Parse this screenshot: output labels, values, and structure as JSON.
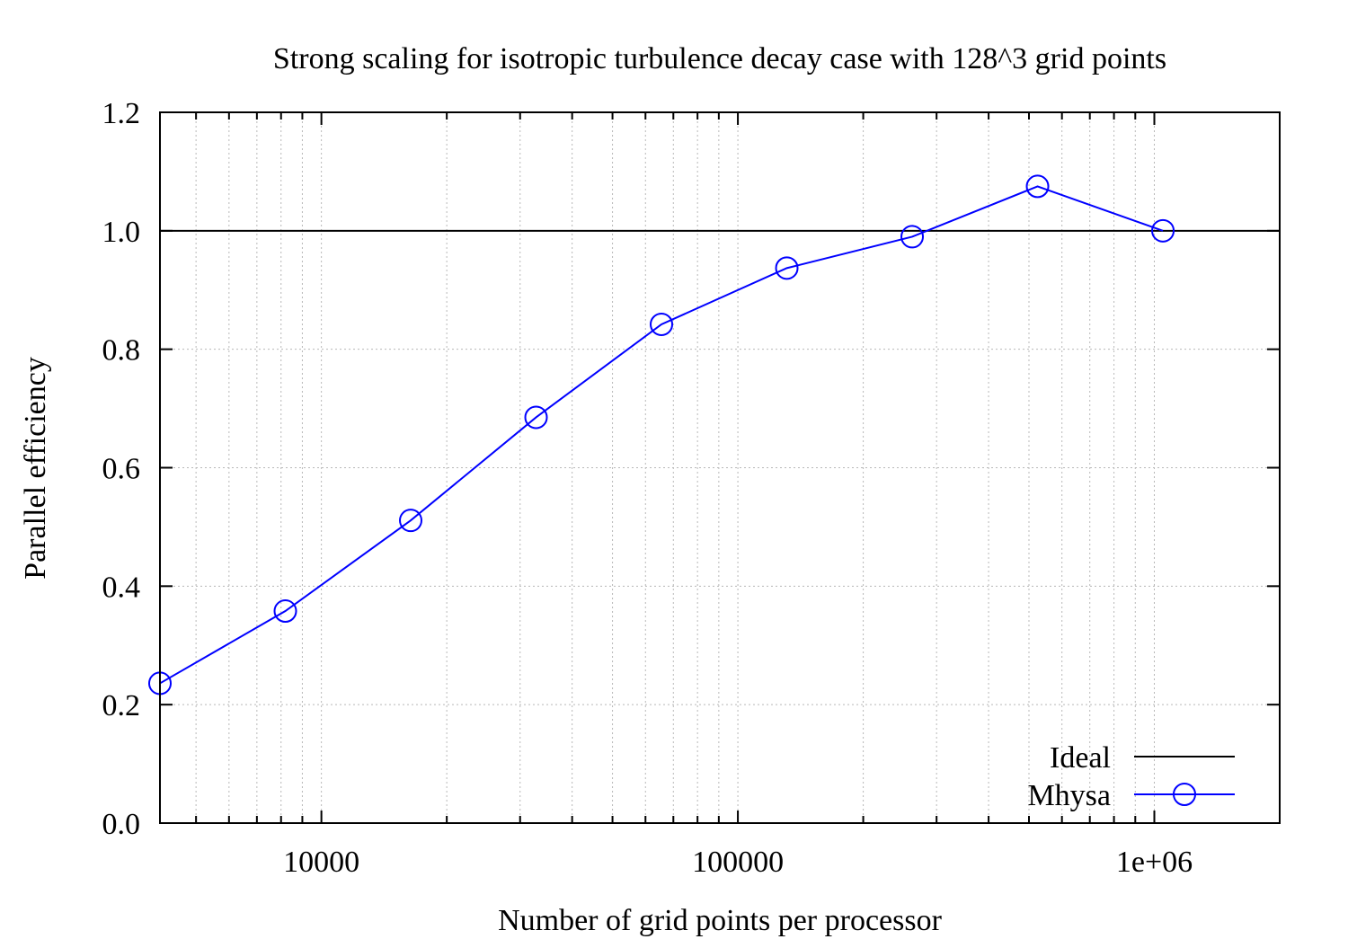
{
  "chart_data": {
    "type": "line",
    "title": "Strong scaling for isotropic turbulence decay case with 128^3 grid points",
    "xlabel": "Number of grid points per processor",
    "ylabel": "Parallel efficiency",
    "x_scale": "log",
    "xlim": [
      4096,
      2000000
    ],
    "ylim": [
      0.0,
      1.2
    ],
    "x_ticks": [
      {
        "value": 10000,
        "label": "10000"
      },
      {
        "value": 100000,
        "label": "100000"
      },
      {
        "value": 1000000,
        "label": "1e+06"
      }
    ],
    "y_ticks": [
      {
        "value": 0.0,
        "label": "0.0"
      },
      {
        "value": 0.2,
        "label": "0.2"
      },
      {
        "value": 0.4,
        "label": "0.4"
      },
      {
        "value": 0.6,
        "label": "0.6"
      },
      {
        "value": 0.8,
        "label": "0.8"
      },
      {
        "value": 1.0,
        "label": "1.0"
      },
      {
        "value": 1.2,
        "label": "1.2"
      }
    ],
    "grid": true,
    "legend_position": "bottom-right",
    "series": [
      {
        "name": "Ideal",
        "color": "#000000",
        "marker": "none",
        "x": [
          4096,
          2000000
        ],
        "y": [
          1.0,
          1.0
        ]
      },
      {
        "name": "Mhysa",
        "color": "#0000ff",
        "marker": "circle",
        "x": [
          4096,
          8192,
          16384,
          32768,
          65536,
          131072,
          262144,
          524288,
          1048576
        ],
        "y": [
          0.236,
          0.358,
          0.511,
          0.685,
          0.842,
          0.937,
          0.99,
          1.075,
          1.0
        ]
      }
    ]
  }
}
